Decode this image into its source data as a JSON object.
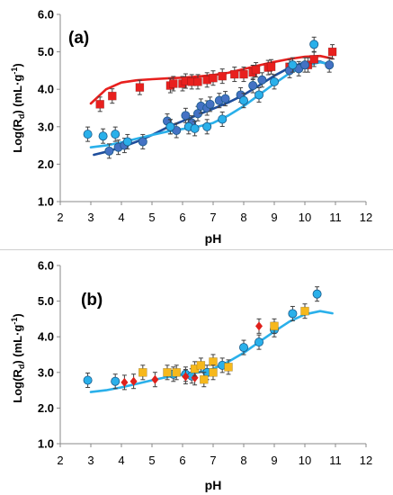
{
  "figure": {
    "colors": {
      "red": "#e8201e",
      "darkblue": "#4472c4",
      "cyan": "#2ab0ea",
      "orange": "#f6b81c",
      "diamond_red": "#e0201b",
      "errorbar": "#404040",
      "axis": "#888888"
    }
  },
  "chart_data": [
    {
      "type": "scatter",
      "panel_label": "(a)",
      "xlabel": "pH",
      "ylabel_main": "Log(R",
      "ylabel_sub": "d",
      "ylabel_tail": ")   (mL·g",
      "ylabel_sup": "-1",
      "ylabel_end": ")",
      "xlim": [
        2,
        12
      ],
      "ylim": [
        1.0,
        6.0
      ],
      "x_ticks": [
        "2",
        "3",
        "4",
        "5",
        "6",
        "7",
        "8",
        "9",
        "10",
        "11",
        "12"
      ],
      "y_ticks": [
        "1.0",
        "2.0",
        "3.0",
        "4.0",
        "5.0",
        "6.0"
      ],
      "series": [
        {
          "marker": "square",
          "color": "#e8201e",
          "points": [
            [
              3.3,
              3.6
            ],
            [
              3.7,
              3.82
            ],
            [
              4.6,
              4.05
            ],
            [
              5.6,
              4.1
            ],
            [
              5.7,
              4.15
            ],
            [
              6.0,
              4.15
            ],
            [
              6.1,
              4.22
            ],
            [
              6.3,
              4.2
            ],
            [
              6.5,
              4.2
            ],
            [
              6.8,
              4.25
            ],
            [
              7.0,
              4.3
            ],
            [
              7.3,
              4.35
            ],
            [
              7.7,
              4.4
            ],
            [
              8.0,
              4.4
            ],
            [
              8.3,
              4.45
            ],
            [
              8.4,
              4.52
            ],
            [
              8.8,
              4.58
            ],
            [
              8.9,
              4.6
            ],
            [
              9.5,
              4.6
            ],
            [
              10.1,
              4.65
            ],
            [
              10.3,
              4.8
            ],
            [
              10.9,
              5.0
            ]
          ]
        },
        {
          "marker": "circle",
          "color": "#4472c4",
          "points": [
            [
              3.6,
              2.35
            ],
            [
              3.9,
              2.45
            ],
            [
              4.1,
              2.5
            ],
            [
              4.7,
              2.6
            ],
            [
              5.5,
              3.15
            ],
            [
              5.6,
              3.0
            ],
            [
              5.8,
              2.9
            ],
            [
              6.1,
              3.3
            ],
            [
              6.3,
              3.1
            ],
            [
              6.5,
              3.35
            ],
            [
              6.6,
              3.55
            ],
            [
              6.8,
              3.5
            ],
            [
              6.9,
              3.6
            ],
            [
              7.2,
              3.7
            ],
            [
              7.4,
              3.75
            ],
            [
              7.9,
              3.85
            ],
            [
              8.3,
              4.1
            ],
            [
              8.6,
              4.25
            ],
            [
              9.5,
              4.5
            ],
            [
              9.8,
              4.55
            ],
            [
              10.0,
              4.65
            ],
            [
              10.8,
              4.65
            ]
          ]
        },
        {
          "marker": "circle",
          "color": "#2ab0ea",
          "points": [
            [
              2.9,
              2.8
            ],
            [
              3.4,
              2.75
            ],
            [
              3.8,
              2.8
            ],
            [
              4.2,
              2.6
            ],
            [
              5.6,
              3.0
            ],
            [
              6.2,
              3.0
            ],
            [
              6.4,
              2.95
            ],
            [
              6.8,
              3.0
            ],
            [
              7.3,
              3.2
            ],
            [
              8.0,
              3.7
            ],
            [
              8.5,
              3.85
            ],
            [
              9.0,
              4.2
            ],
            [
              9.6,
              4.65
            ],
            [
              10.3,
              5.2
            ]
          ]
        }
      ],
      "curves": [
        {
          "color": "#e8201e",
          "points": [
            [
              3.0,
              3.62
            ],
            [
              3.5,
              4.0
            ],
            [
              4.0,
              4.18
            ],
            [
              4.5,
              4.24
            ],
            [
              5.0,
              4.27
            ],
            [
              5.5,
              4.29
            ],
            [
              6.0,
              4.31
            ],
            [
              6.5,
              4.34
            ],
            [
              7.0,
              4.38
            ],
            [
              7.5,
              4.44
            ],
            [
              8.0,
              4.54
            ],
            [
              8.5,
              4.64
            ],
            [
              9.0,
              4.73
            ],
            [
              9.5,
              4.81
            ],
            [
              10.0,
              4.87
            ],
            [
              10.5,
              4.89
            ],
            [
              10.9,
              4.82
            ]
          ]
        },
        {
          "color": "#1f4e9c",
          "points": [
            [
              3.1,
              2.25
            ],
            [
              3.5,
              2.33
            ],
            [
              4.0,
              2.45
            ],
            [
              4.5,
              2.6
            ],
            [
              5.0,
              2.78
            ],
            [
              5.5,
              2.98
            ],
            [
              6.0,
              3.15
            ],
            [
              6.5,
              3.32
            ],
            [
              7.0,
              3.48
            ],
            [
              7.5,
              3.65
            ],
            [
              8.0,
              3.85
            ],
            [
              8.5,
              4.1
            ],
            [
              9.0,
              4.36
            ],
            [
              9.5,
              4.58
            ],
            [
              10.0,
              4.72
            ],
            [
              10.5,
              4.74
            ],
            [
              10.9,
              4.62
            ]
          ]
        },
        {
          "color": "#2ab0ea",
          "points": [
            [
              3.0,
              2.45
            ],
            [
              3.5,
              2.5
            ],
            [
              4.0,
              2.58
            ],
            [
              4.5,
              2.68
            ],
            [
              5.0,
              2.78
            ],
            [
              5.5,
              2.87
            ],
            [
              6.0,
              2.94
            ],
            [
              6.5,
              3.0
            ],
            [
              7.0,
              3.1
            ],
            [
              7.5,
              3.3
            ],
            [
              8.0,
              3.55
            ],
            [
              8.5,
              3.85
            ],
            [
              9.0,
              4.15
            ],
            [
              9.5,
              4.43
            ],
            [
              10.0,
              4.63
            ],
            [
              10.5,
              4.72
            ],
            [
              10.9,
              4.66
            ]
          ]
        }
      ]
    },
    {
      "type": "scatter",
      "panel_label": "(b)",
      "xlabel": "pH",
      "ylabel_main": "Log(R",
      "ylabel_sub": "d",
      "ylabel_tail": ")   (mL·g",
      "ylabel_sup": "-1",
      "ylabel_end": ")",
      "xlim": [
        2,
        12
      ],
      "ylim": [
        1.0,
        6.0
      ],
      "x_ticks": [
        "2",
        "3",
        "4",
        "5",
        "6",
        "7",
        "8",
        "9",
        "10",
        "11",
        "12"
      ],
      "y_ticks": [
        "1.0",
        "2.0",
        "3.0",
        "4.0",
        "5.0",
        "6.0"
      ],
      "series": [
        {
          "marker": "circle",
          "color": "#2ab0ea",
          "points": [
            [
              2.9,
              2.78
            ],
            [
              3.8,
              2.75
            ],
            [
              5.7,
              2.95
            ],
            [
              6.1,
              2.95
            ],
            [
              6.3,
              2.9
            ],
            [
              6.8,
              3.0
            ],
            [
              7.3,
              3.2
            ],
            [
              8.0,
              3.7
            ],
            [
              8.5,
              3.85
            ],
            [
              9.0,
              4.2
            ],
            [
              9.6,
              4.65
            ],
            [
              10.4,
              5.2
            ]
          ]
        },
        {
          "marker": "diamond",
          "color": "#e0201b",
          "points": [
            [
              4.1,
              2.72
            ],
            [
              4.4,
              2.75
            ],
            [
              5.1,
              2.8
            ],
            [
              6.1,
              2.88
            ],
            [
              6.4,
              2.85
            ],
            [
              8.5,
              4.3
            ]
          ]
        },
        {
          "marker": "square",
          "color": "#f6b81c",
          "points": [
            [
              4.7,
              3.0
            ],
            [
              5.5,
              3.0
            ],
            [
              5.8,
              3.0
            ],
            [
              6.4,
              3.1
            ],
            [
              6.6,
              3.2
            ],
            [
              6.7,
              2.8
            ],
            [
              7.0,
              3.3
            ],
            [
              7.0,
              3.0
            ],
            [
              7.5,
              3.15
            ],
            [
              9.0,
              4.3
            ],
            [
              10.0,
              4.72
            ]
          ]
        }
      ],
      "curves": [
        {
          "color": "#2ab0ea",
          "points": [
            [
              3.0,
              2.45
            ],
            [
              3.5,
              2.5
            ],
            [
              4.0,
              2.58
            ],
            [
              4.5,
              2.68
            ],
            [
              5.0,
              2.78
            ],
            [
              5.5,
              2.87
            ],
            [
              6.0,
              2.94
            ],
            [
              6.5,
              3.0
            ],
            [
              7.0,
              3.1
            ],
            [
              7.5,
              3.3
            ],
            [
              8.0,
              3.55
            ],
            [
              8.5,
              3.85
            ],
            [
              9.0,
              4.15
            ],
            [
              9.5,
              4.43
            ],
            [
              10.0,
              4.63
            ],
            [
              10.5,
              4.72
            ],
            [
              10.9,
              4.66
            ]
          ]
        }
      ]
    }
  ]
}
